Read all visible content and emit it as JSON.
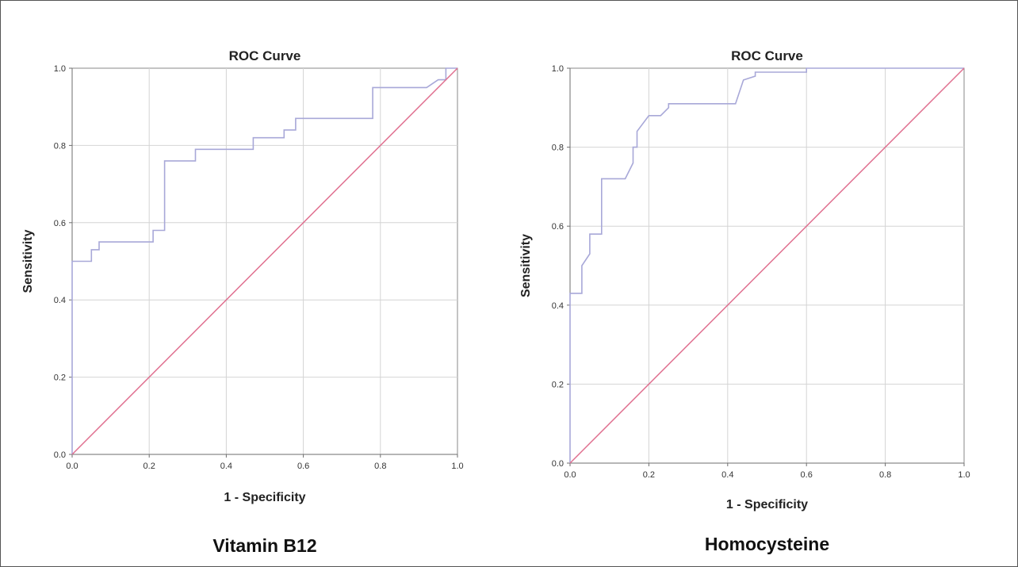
{
  "chart_data": [
    {
      "type": "line",
      "title": "ROC Curve",
      "xlabel": "1 - Specificity",
      "ylabel": "Sensitivity",
      "caption": "Vitamin B12",
      "xlim": [
        0,
        1
      ],
      "ylim": [
        0,
        1
      ],
      "x_ticks": [
        "0.0",
        "0.2",
        "0.4",
        "0.6",
        "0.8",
        "1.0"
      ],
      "y_ticks": [
        "0.0",
        "0.2",
        "0.4",
        "0.6",
        "0.8",
        "1.0"
      ],
      "grid": true,
      "series": [
        {
          "color": "#a8a8d8",
          "x": [
            0,
            0,
            0.05,
            0.05,
            0.07,
            0.07,
            0.21,
            0.21,
            0.24,
            0.24,
            0.32,
            0.32,
            0.47,
            0.47,
            0.55,
            0.55,
            0.58,
            0.58,
            0.78,
            0.78,
            0.92,
            0.95,
            0.97,
            0.97,
            1.0
          ],
          "y": [
            0,
            0.5,
            0.5,
            0.53,
            0.53,
            0.55,
            0.55,
            0.58,
            0.58,
            0.76,
            0.76,
            0.79,
            0.79,
            0.82,
            0.82,
            0.84,
            0.84,
            0.87,
            0.87,
            0.95,
            0.95,
            0.97,
            0.97,
            1.0,
            1.0
          ]
        },
        {
          "color": "#e07090",
          "x": [
            0,
            1
          ],
          "y": [
            0,
            1
          ]
        }
      ]
    },
    {
      "type": "line",
      "title": "ROC Curve",
      "xlabel": "1 - Specificity",
      "ylabel": "Sensitivity",
      "caption": "Homocysteine",
      "xlim": [
        0,
        1
      ],
      "ylim": [
        0,
        1
      ],
      "x_ticks": [
        "0.0",
        "0.2",
        "0.4",
        "0.6",
        "0.8",
        "1.0"
      ],
      "y_ticks": [
        "0.0",
        "0.2",
        "0.4",
        "0.6",
        "0.8",
        "1.0"
      ],
      "grid": true,
      "series": [
        {
          "color": "#a8a8d8",
          "x": [
            0,
            0,
            0.03,
            0.03,
            0.05,
            0.05,
            0.08,
            0.08,
            0.14,
            0.16,
            0.16,
            0.17,
            0.17,
            0.2,
            0.2,
            0.23,
            0.25,
            0.25,
            0.42,
            0.44,
            0.44,
            0.47,
            0.47,
            0.6,
            0.6,
            1.0
          ],
          "y": [
            0,
            0.43,
            0.43,
            0.5,
            0.53,
            0.58,
            0.58,
            0.72,
            0.72,
            0.76,
            0.8,
            0.8,
            0.84,
            0.88,
            0.88,
            0.88,
            0.9,
            0.91,
            0.91,
            0.97,
            0.97,
            0.98,
            0.99,
            0.99,
            1.0,
            1.0
          ]
        },
        {
          "color": "#e07090",
          "x": [
            0,
            1
          ],
          "y": [
            0,
            1
          ]
        }
      ]
    }
  ]
}
